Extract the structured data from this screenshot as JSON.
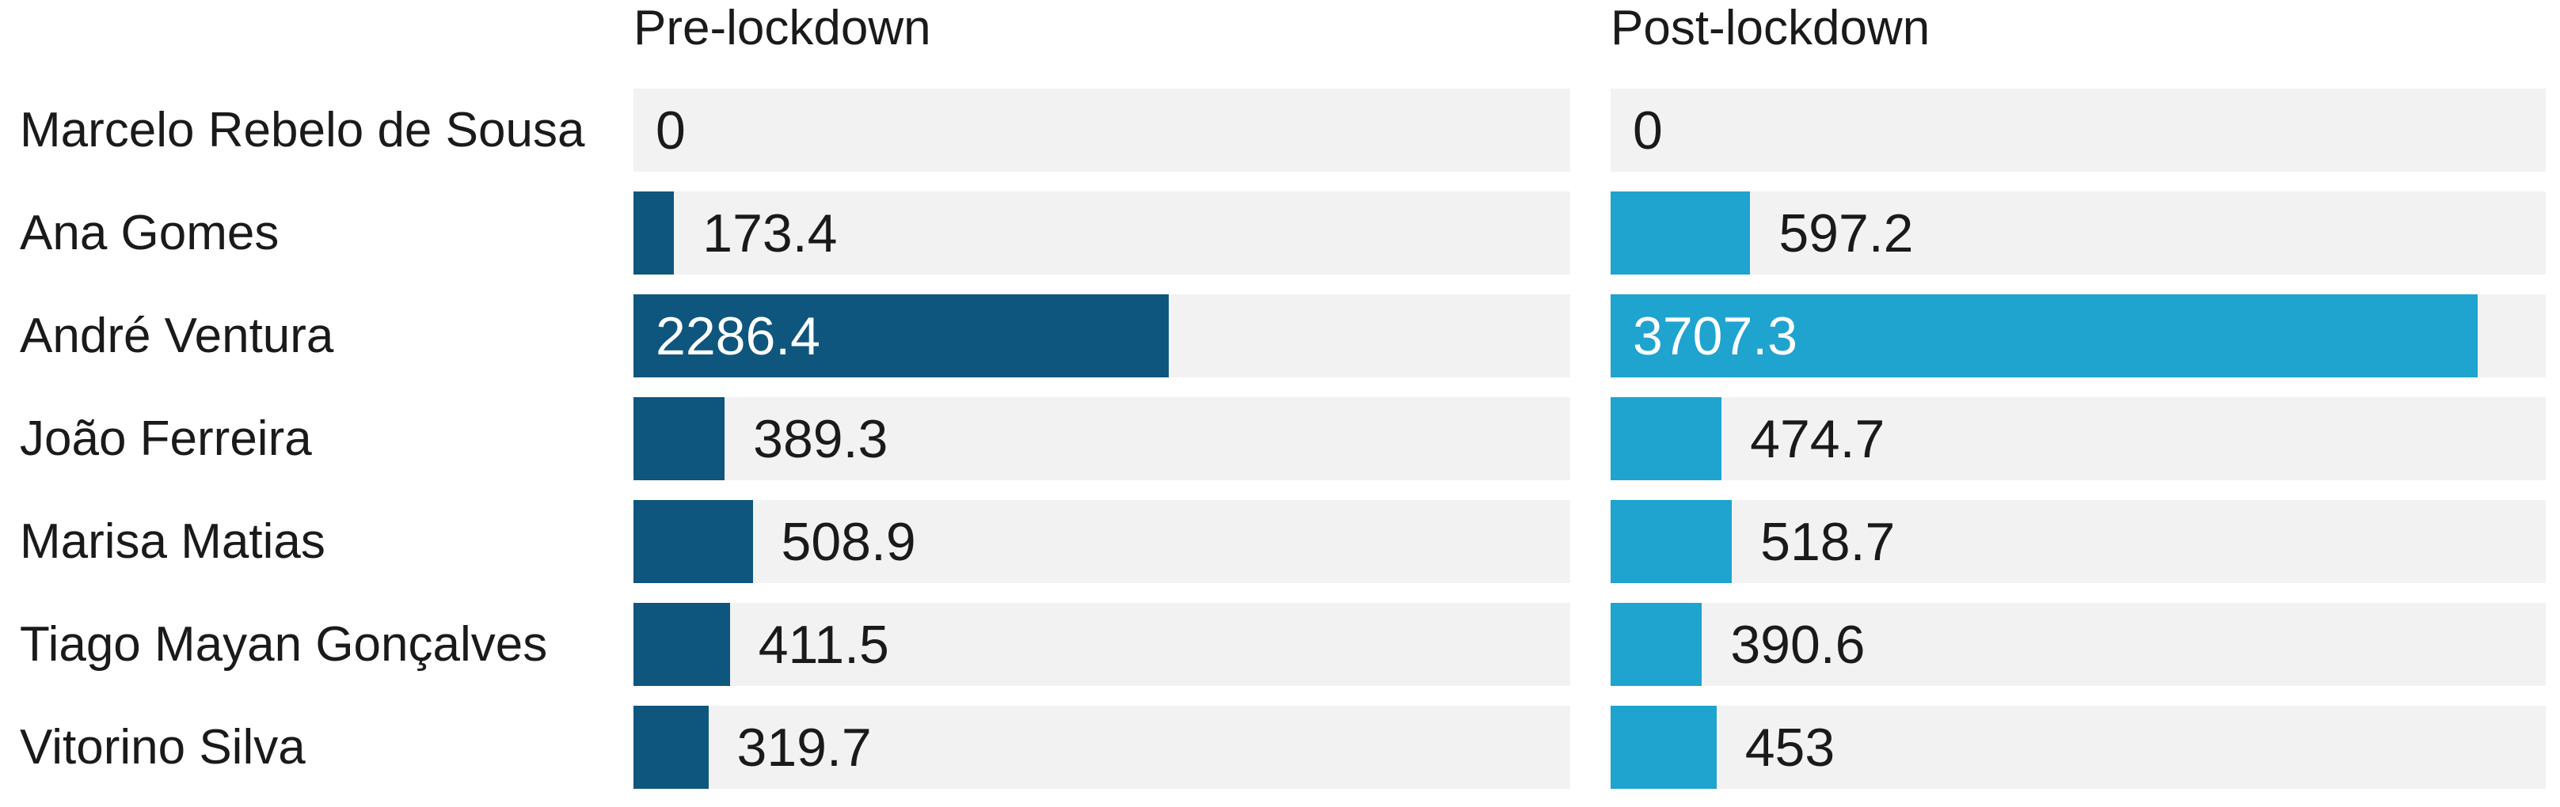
{
  "chart_data": {
    "type": "bar",
    "orientation": "horizontal",
    "layout": "split-columns",
    "title": "",
    "categories": [
      "Marcelo Rebelo de Sousa",
      "Ana Gomes",
      "André Ventura",
      "João Ferreira",
      "Marisa Matias",
      "Tiago Mayan Gonçalves",
      "Vitorino Silva"
    ],
    "series": [
      {
        "name": "Pre-lockdown",
        "values": [
          0,
          173.4,
          2286.4,
          389.3,
          508.9,
          411.5,
          319.7
        ],
        "labels": [
          "0",
          "173.4",
          "2286.4",
          "389.3",
          "508.9",
          "411.5",
          "319.7"
        ],
        "color": "#0E567E"
      },
      {
        "name": "Post-lockdown",
        "values": [
          0,
          597.2,
          3707.3,
          474.7,
          518.7,
          390.6,
          453
        ],
        "labels": [
          "0",
          "597.2",
          "3707.3",
          "474.7",
          "518.7",
          "390.6",
          "453"
        ],
        "color": "#1FA3CF"
      }
    ],
    "xlim": [
      0,
      4000
    ],
    "grid": false,
    "legend": "column-headers",
    "value_label_placement": "outside-unless-fits",
    "colors": {
      "pre_bar": "#0E567E",
      "post_bar": "#1FA3CF",
      "track": "#F2F2F2",
      "text": "#1A1A1A",
      "value_inside": "#FFFFFF",
      "background": "#FFFFFF"
    }
  }
}
